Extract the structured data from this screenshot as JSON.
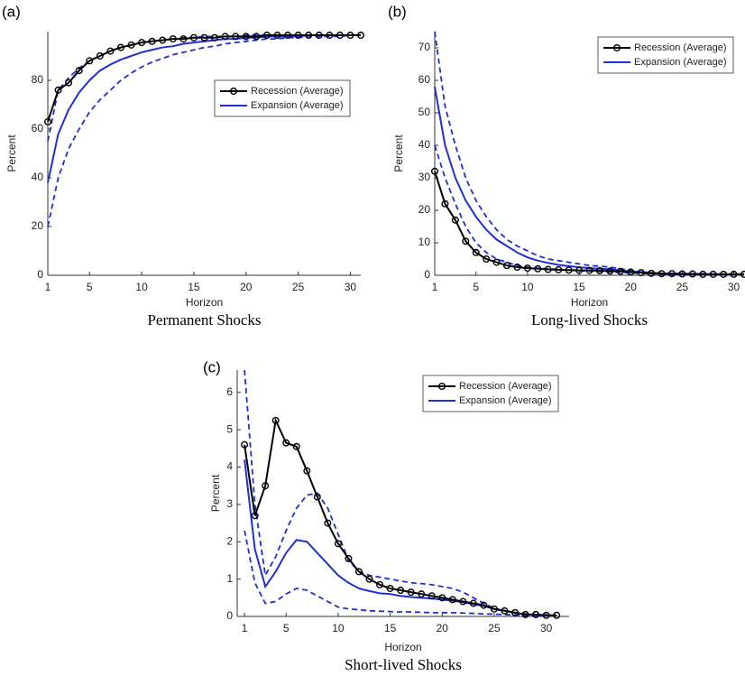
{
  "chart_data": [
    {
      "type": "line",
      "panel_label": "(a)",
      "caption": "Permanent Shocks",
      "xlabel": "Horizon",
      "ylabel": "Percent",
      "x": [
        1,
        2,
        3,
        4,
        5,
        6,
        7,
        8,
        9,
        10,
        11,
        12,
        13,
        14,
        15,
        16,
        17,
        18,
        19,
        20,
        21,
        22,
        23,
        24,
        25,
        26,
        27,
        28,
        29,
        30,
        31
      ],
      "xlim": [
        1,
        31
      ],
      "xticks": [
        1,
        5,
        10,
        15,
        20,
        25,
        30
      ],
      "ylim": [
        0,
        100
      ],
      "yticks": [
        0,
        20,
        40,
        60,
        80
      ],
      "legend": "center right",
      "series": [
        {
          "name": "Recession (Average)",
          "color": "#000000",
          "marker": "circle",
          "style": "solid",
          "values": [
            63,
            76,
            79,
            84,
            88,
            90,
            92,
            93.5,
            94.5,
            95.5,
            96,
            96.5,
            97,
            97,
            97.5,
            97.5,
            97.5,
            98,
            98,
            98,
            98,
            98.5,
            98.5,
            98.5,
            98.5,
            98.5,
            98.5,
            98.5,
            98.5,
            98.5,
            98.5
          ]
        },
        {
          "name": "Expansion (Average)",
          "color": "#1f2fd6",
          "style": "solid",
          "values": [
            38,
            58,
            68,
            75,
            80,
            84,
            86.5,
            88.5,
            90,
            91.5,
            92.5,
            93.5,
            94,
            95,
            95.5,
            96,
            96.5,
            97,
            97,
            97.5,
            97.5,
            98,
            98,
            98,
            98,
            98.5,
            98.5,
            98.5,
            98.5,
            98.5,
            98.5
          ]
        },
        {
          "color": "#1f2fd6",
          "style": "dashed",
          "values": [
            55,
            76,
            81,
            85,
            88,
            90,
            92,
            93.5,
            94.5,
            95.5,
            96,
            96.5,
            97,
            97.5,
            97.5,
            98,
            98,
            98,
            98,
            98.5,
            98.5,
            98.5,
            98.5,
            98.5,
            98.5,
            98.5,
            98.5,
            98.5,
            98.5,
            98.5,
            98.5
          ]
        },
        {
          "color": "#1f2fd6",
          "style": "dashed",
          "values": [
            20,
            40,
            52,
            60,
            67,
            72,
            76,
            80,
            83,
            85.5,
            87.5,
            89,
            90.5,
            91.5,
            92.5,
            93.5,
            94,
            95,
            95.5,
            96,
            96.5,
            97,
            97,
            97.5,
            97.5,
            98,
            98,
            98,
            98,
            98.5,
            98.5
          ]
        }
      ]
    },
    {
      "type": "line",
      "panel_label": "(b)",
      "caption": "Long-lived Shocks",
      "xlabel": "Horizon",
      "ylabel": "Percent",
      "x": [
        1,
        2,
        3,
        4,
        5,
        6,
        7,
        8,
        9,
        10,
        11,
        12,
        13,
        14,
        15,
        16,
        17,
        18,
        19,
        20,
        21,
        22,
        23,
        24,
        25,
        26,
        27,
        28,
        29,
        30,
        31
      ],
      "xlim": [
        1,
        31
      ],
      "xticks": [
        1,
        5,
        10,
        15,
        20,
        25,
        30
      ],
      "ylim": [
        0,
        75
      ],
      "yticks": [
        0,
        10,
        20,
        30,
        40,
        50,
        60,
        70
      ],
      "legend": "upper right",
      "series": [
        {
          "name": "Recession (Average)",
          "color": "#000000",
          "marker": "circle",
          "style": "solid",
          "values": [
            32,
            22,
            17,
            10.5,
            7,
            5,
            4,
            3,
            2.5,
            2.2,
            2,
            1.8,
            1.7,
            1.6,
            1.5,
            1.5,
            1.4,
            1.3,
            1.2,
            1,
            0.8,
            0.6,
            0.5,
            0.5,
            0.4,
            0.4,
            0.3,
            0.3,
            0.3,
            0.3,
            0.3
          ]
        },
        {
          "name": "Expansion (Average)",
          "color": "#1f2fd6",
          "style": "solid",
          "values": [
            58,
            40,
            30,
            23,
            18,
            14,
            11,
            9,
            7,
            5.5,
            4.5,
            3.8,
            3.2,
            2.8,
            2.5,
            2.2,
            2,
            1.8,
            1.5,
            1.2,
            1,
            0.8,
            0.6,
            0.5,
            0.5,
            0.4,
            0.4,
            0.3,
            0.3,
            0.3,
            0.3
          ]
        },
        {
          "color": "#1f2fd6",
          "style": "dashed",
          "values": [
            75,
            52,
            40,
            30,
            23,
            18,
            14,
            11,
            9,
            7.5,
            6,
            5,
            4.5,
            4,
            3.5,
            3,
            2.8,
            2.5,
            2,
            1.5,
            1,
            0.8,
            0.6,
            0.5,
            0.5,
            0.4,
            0.4,
            0.3,
            0.3,
            0.3,
            0.3
          ]
        },
        {
          "color": "#1f2fd6",
          "style": "dashed",
          "values": [
            40,
            30,
            22,
            15,
            10,
            7,
            5,
            4,
            3,
            2.5,
            2.2,
            2,
            1.8,
            1.6,
            1.4,
            1.3,
            1.2,
            1,
            0.9,
            0.7,
            0.6,
            0.5,
            0.4,
            0.3,
            0.3,
            0.3,
            0.2,
            0.2,
            0.2,
            0.2,
            0.2
          ]
        }
      ]
    },
    {
      "type": "line",
      "panel_label": "(c)",
      "caption": "Short-lived Shocks",
      "xlabel": "Horizon",
      "ylabel": "Percent",
      "x": [
        1,
        2,
        3,
        4,
        5,
        6,
        7,
        8,
        9,
        10,
        11,
        12,
        13,
        14,
        15,
        16,
        17,
        18,
        19,
        20,
        21,
        22,
        23,
        24,
        25,
        26,
        27,
        28,
        29,
        30,
        31
      ],
      "xlim": [
        0.3,
        32.2
      ],
      "xticks": [
        1,
        5,
        10,
        15,
        20,
        25,
        30
      ],
      "ylim": [
        0,
        6.6
      ],
      "yticks": [
        0,
        1,
        2,
        3,
        4,
        5,
        6
      ],
      "legend": "upper right",
      "series": [
        {
          "name": "Recession (Average)",
          "color": "#000000",
          "marker": "circle",
          "style": "solid",
          "values": [
            4.6,
            2.7,
            3.5,
            5.25,
            4.65,
            4.55,
            3.9,
            3.2,
            2.5,
            1.95,
            1.55,
            1.2,
            1.0,
            0.85,
            0.75,
            0.7,
            0.65,
            0.6,
            0.55,
            0.5,
            0.45,
            0.4,
            0.35,
            0.3,
            0.2,
            0.15,
            0.1,
            0.05,
            0.05,
            0.03,
            0.03
          ]
        },
        {
          "name": "Expansion (Average)",
          "color": "#1f2fd6",
          "style": "solid",
          "values": [
            4.2,
            1.8,
            0.8,
            1.2,
            1.7,
            2.05,
            2.0,
            1.7,
            1.4,
            1.1,
            0.9,
            0.75,
            0.68,
            0.62,
            0.6,
            0.55,
            0.52,
            0.5,
            0.48,
            0.45,
            0.42,
            0.38,
            0.33,
            0.28,
            0.2,
            0.15,
            0.1,
            0.06,
            0.04,
            0.03,
            0.02
          ]
        },
        {
          "color": "#1f2fd6",
          "style": "dashed",
          "values": [
            6.6,
            3.0,
            1.1,
            1.6,
            2.3,
            2.9,
            3.25,
            3.3,
            2.9,
            2.2,
            1.5,
            1.2,
            1.1,
            1.05,
            1.0,
            0.95,
            0.9,
            0.88,
            0.85,
            0.8,
            0.75,
            0.65,
            0.5,
            0.35,
            0.22,
            0.15,
            0.1,
            0.07,
            0.05,
            0.03,
            0.02
          ]
        },
        {
          "color": "#1f2fd6",
          "style": "dashed",
          "values": [
            2.3,
            0.9,
            0.35,
            0.4,
            0.6,
            0.75,
            0.7,
            0.55,
            0.4,
            0.25,
            0.2,
            0.18,
            0.15,
            0.14,
            0.13,
            0.12,
            0.12,
            0.11,
            0.1,
            0.1,
            0.1,
            0.09,
            0.08,
            0.07,
            0.06,
            0.05,
            0.04,
            0.03,
            0.02,
            0.02,
            0.01
          ]
        }
      ]
    }
  ]
}
